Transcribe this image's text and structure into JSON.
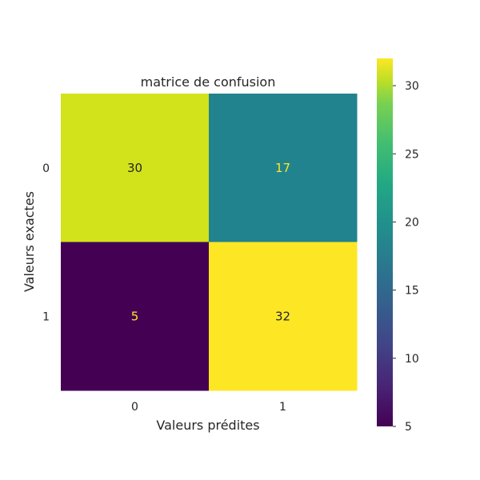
{
  "chart_data": {
    "type": "heatmap",
    "title": "matrice de confusion",
    "xlabel": "Valeurs prédites",
    "ylabel": "Valeurs exactes",
    "x_categories": [
      "0",
      "1"
    ],
    "y_categories": [
      "0",
      "1"
    ],
    "values": [
      [
        30,
        17
      ],
      [
        5,
        32
      ]
    ],
    "colormap": "viridis",
    "color_range": [
      5,
      32
    ],
    "colorbar_ticks": [
      5,
      10,
      15,
      20,
      25,
      30
    ],
    "colorbar_tick_labels": [
      "5",
      "10",
      "15",
      "20",
      "25",
      "30"
    ],
    "cell_colors": [
      [
        "#d2e21b",
        "#21838e"
      ],
      [
        "#440154",
        "#fde725"
      ]
    ],
    "cell_text_colors": [
      [
        "#262626",
        "#fde725"
      ],
      [
        "#fde725",
        "#262626"
      ]
    ],
    "grid": false
  }
}
